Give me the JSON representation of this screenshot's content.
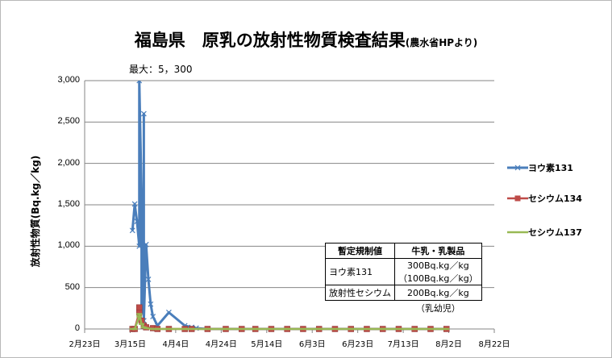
{
  "chart_title": "福島県　原乳の放射性物質検査結果",
  "chart_subtitle": "(農水省HPより)",
  "max_note": "最大：5，300",
  "regulation_table": {
    "header_label": "暫定規制値",
    "header_value": "牛乳・乳製品",
    "rows": [
      {
        "label": "ヨウ素131",
        "value": "300Bq.kg／kg",
        "value2": "（100Bq.kg／kg）"
      },
      {
        "label": "放射性セシウム",
        "value": "200Bq.kg／kg",
        "value2": ""
      }
    ],
    "note": "（乳幼児）"
  },
  "colors": {
    "iodine": "#4a7ebb",
    "cs134": "#be4b48",
    "cs137": "#98b954",
    "grid": "#868686"
  },
  "chart_data": {
    "type": "line",
    "ylabel": "放射性物質(Bq.kg／kg)",
    "ylim": [
      0,
      3000
    ],
    "yticks": [
      0,
      500,
      1000,
      1500,
      2000,
      2500,
      3000
    ],
    "ytick_labels": [
      "0",
      "500",
      "1,000",
      "1,500",
      "2,000",
      "2,500",
      "3,000"
    ],
    "xlim": [
      "2011-02-23",
      "2011-08-22"
    ],
    "xtick_dates": [
      "2011-02-23",
      "2011-03-15",
      "2011-04-04",
      "2011-04-24",
      "2011-05-14",
      "2011-06-03",
      "2011-06-23",
      "2011-07-13",
      "2011-08-02",
      "2011-08-22"
    ],
    "xtick_labels": [
      "2月23日",
      "3月15日",
      "4月4日",
      "4月24日",
      "5月14日",
      "6月3日",
      "6月23日",
      "7月13日",
      "8月2日",
      "8月22日"
    ],
    "grid": "horizontal",
    "legend_position": "right",
    "series": [
      {
        "name": "ヨウ素131",
        "points": [
          [
            "2011-03-16",
            1190
          ],
          [
            "2011-03-17",
            1510
          ],
          [
            "2011-03-18",
            1300
          ],
          [
            "2011-03-19",
            1000
          ],
          [
            "2011-03-19",
            5300
          ],
          [
            "2011-03-20",
            1600
          ],
          [
            "2011-03-20",
            200
          ],
          [
            "2011-03-21",
            1000
          ],
          [
            "2011-03-21",
            2600
          ],
          [
            "2011-03-21",
            100
          ],
          [
            "2011-03-22",
            1020
          ],
          [
            "2011-03-23",
            600
          ],
          [
            "2011-03-24",
            300
          ],
          [
            "2011-03-25",
            150
          ],
          [
            "2011-03-27",
            40
          ],
          [
            "2011-04-01",
            200
          ],
          [
            "2011-04-08",
            40
          ],
          [
            "2011-04-11",
            20
          ],
          [
            "2011-04-13",
            10
          ],
          [
            "2011-04-18",
            0
          ],
          [
            "2011-04-26",
            0
          ],
          [
            "2011-05-03",
            0
          ],
          [
            "2011-05-09",
            0
          ],
          [
            "2011-05-16",
            0
          ],
          [
            "2011-05-23",
            0
          ],
          [
            "2011-05-30",
            0
          ],
          [
            "2011-06-06",
            0
          ],
          [
            "2011-06-13",
            0
          ],
          [
            "2011-06-20",
            0
          ],
          [
            "2011-06-27",
            0
          ],
          [
            "2011-07-04",
            0
          ],
          [
            "2011-07-11",
            0
          ],
          [
            "2011-07-18",
            0
          ],
          [
            "2011-07-25",
            0
          ],
          [
            "2011-08-01",
            0
          ]
        ]
      },
      {
        "name": "セシウム134",
        "points": [
          [
            "2011-03-16",
            0
          ],
          [
            "2011-03-17",
            0
          ],
          [
            "2011-03-19",
            200
          ],
          [
            "2011-03-19",
            260
          ],
          [
            "2011-03-20",
            100
          ],
          [
            "2011-03-21",
            40
          ],
          [
            "2011-03-22",
            20
          ],
          [
            "2011-03-25",
            10
          ],
          [
            "2011-03-27",
            0
          ],
          [
            "2011-04-01",
            0
          ],
          [
            "2011-04-08",
            0
          ],
          [
            "2011-04-11",
            0
          ],
          [
            "2011-04-18",
            0
          ],
          [
            "2011-04-26",
            0
          ],
          [
            "2011-05-03",
            0
          ],
          [
            "2011-05-09",
            0
          ],
          [
            "2011-05-16",
            0
          ],
          [
            "2011-05-23",
            0
          ],
          [
            "2011-05-30",
            0
          ],
          [
            "2011-06-06",
            0
          ],
          [
            "2011-06-13",
            0
          ],
          [
            "2011-06-20",
            0
          ],
          [
            "2011-06-27",
            0
          ],
          [
            "2011-07-04",
            0
          ],
          [
            "2011-07-11",
            0
          ],
          [
            "2011-07-18",
            0
          ],
          [
            "2011-07-25",
            0
          ],
          [
            "2011-08-01",
            0
          ]
        ]
      },
      {
        "name": "セシウム137",
        "points": [
          [
            "2011-03-16",
            0
          ],
          [
            "2011-03-17",
            0
          ],
          [
            "2011-03-19",
            150
          ],
          [
            "2011-03-19",
            180
          ],
          [
            "2011-03-20",
            60
          ],
          [
            "2011-03-21",
            20
          ],
          [
            "2011-03-22",
            10
          ],
          [
            "2011-03-25",
            0
          ],
          [
            "2011-03-27",
            0
          ],
          [
            "2011-04-01",
            0
          ],
          [
            "2011-04-08",
            0
          ],
          [
            "2011-04-18",
            0
          ],
          [
            "2011-04-26",
            0
          ],
          [
            "2011-05-09",
            0
          ],
          [
            "2011-05-23",
            0
          ],
          [
            "2011-06-06",
            0
          ],
          [
            "2011-06-20",
            0
          ],
          [
            "2011-07-04",
            0
          ],
          [
            "2011-07-18",
            0
          ],
          [
            "2011-08-01",
            0
          ]
        ]
      }
    ]
  }
}
